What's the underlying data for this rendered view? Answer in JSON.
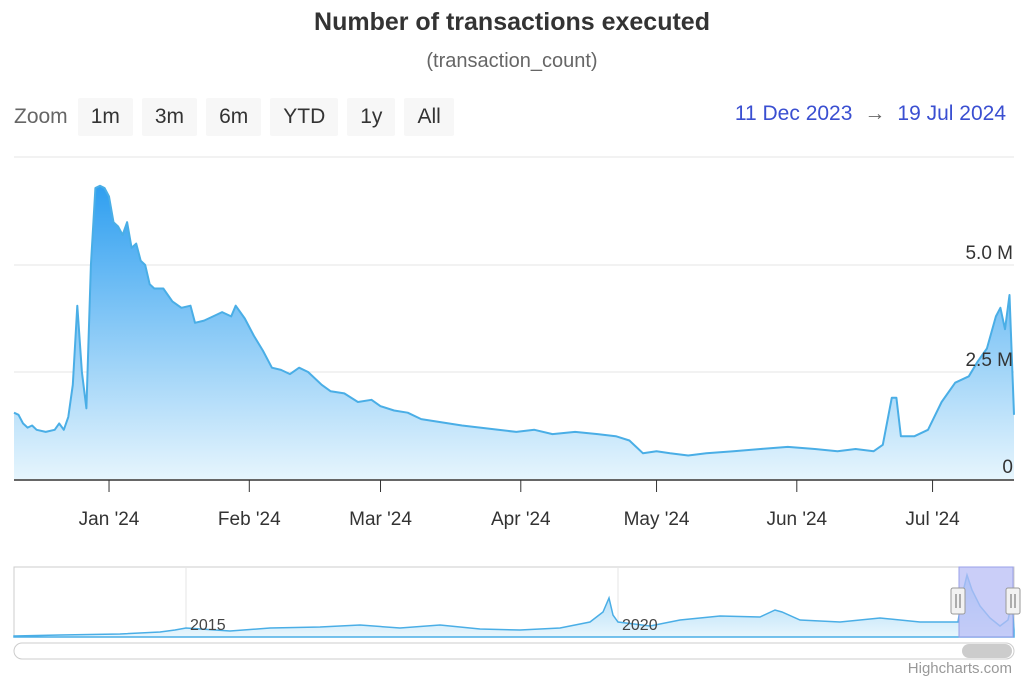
{
  "header": {
    "title": "Number of transactions executed",
    "subtitle": "(transaction_count)"
  },
  "zoom": {
    "label": "Zoom",
    "buttons": [
      "1m",
      "3m",
      "6m",
      "YTD",
      "1y",
      "All"
    ]
  },
  "range_selector": {
    "from": "11 Dec 2023",
    "arrow": "→",
    "to": "19 Jul 2024"
  },
  "credit": "Highcharts.com",
  "colors": {
    "line": "#4aaee6",
    "fill_top": "#2f9ff0",
    "fill_bottom": "#e6f5fd",
    "navigator_mask": "#b8bdf5",
    "range_text": "#3a4fd1"
  },
  "chart_data": {
    "type": "area",
    "title": "Number of transactions executed",
    "subtitle": "(transaction_count)",
    "x_start": "2023-12-11",
    "x_end": "2024-07-19",
    "ylim": [
      0,
      6500000
    ],
    "y_ticks": [
      {
        "value": 0,
        "label": "0"
      },
      {
        "value": 2500000,
        "label": "2.5 M"
      },
      {
        "value": 5000000,
        "label": "5.0 M"
      }
    ],
    "x_ticks": [
      {
        "date": "2024-01-01",
        "label": "Jan '24"
      },
      {
        "date": "2024-02-01",
        "label": "Feb '24"
      },
      {
        "date": "2024-03-01",
        "label": "Mar '24"
      },
      {
        "date": "2024-04-01",
        "label": "Apr '24"
      },
      {
        "date": "2024-05-01",
        "label": "May '24"
      },
      {
        "date": "2024-06-01",
        "label": "Jun '24"
      },
      {
        "date": "2024-07-01",
        "label": "Jul '24"
      }
    ],
    "grid": true,
    "series": [
      {
        "points": [
          [
            "2023-12-11",
            1550000
          ],
          [
            "2023-12-12",
            1500000
          ],
          [
            "2023-12-13",
            1300000
          ],
          [
            "2023-12-14",
            1200000
          ],
          [
            "2023-12-15",
            1250000
          ],
          [
            "2023-12-16",
            1150000
          ],
          [
            "2023-12-18",
            1100000
          ],
          [
            "2023-12-20",
            1150000
          ],
          [
            "2023-12-21",
            1300000
          ],
          [
            "2023-12-22",
            1150000
          ],
          [
            "2023-12-23",
            1450000
          ],
          [
            "2023-12-24",
            2200000
          ],
          [
            "2023-12-25",
            4050000
          ],
          [
            "2023-12-26",
            2500000
          ],
          [
            "2023-12-27",
            1650000
          ],
          [
            "2023-12-28",
            5000000
          ],
          [
            "2023-12-29",
            6800000
          ],
          [
            "2023-12-30",
            6850000
          ],
          [
            "2023-12-31",
            6800000
          ],
          [
            "2024-01-01",
            6600000
          ],
          [
            "2024-01-02",
            6000000
          ],
          [
            "2024-01-03",
            5900000
          ],
          [
            "2024-01-04",
            5700000
          ],
          [
            "2024-01-05",
            6000000
          ],
          [
            "2024-01-06",
            5400000
          ],
          [
            "2024-01-07",
            5500000
          ],
          [
            "2024-01-08",
            5100000
          ],
          [
            "2024-01-09",
            5000000
          ],
          [
            "2024-01-10",
            4550000
          ],
          [
            "2024-01-11",
            4450000
          ],
          [
            "2024-01-13",
            4450000
          ],
          [
            "2024-01-15",
            4150000
          ],
          [
            "2024-01-17",
            4000000
          ],
          [
            "2024-01-19",
            4050000
          ],
          [
            "2024-01-20",
            3650000
          ],
          [
            "2024-01-22",
            3700000
          ],
          [
            "2024-01-24",
            3800000
          ],
          [
            "2024-01-26",
            3900000
          ],
          [
            "2024-01-28",
            3800000
          ],
          [
            "2024-01-29",
            4050000
          ],
          [
            "2024-01-31",
            3750000
          ],
          [
            "2024-02-02",
            3350000
          ],
          [
            "2024-02-04",
            3000000
          ],
          [
            "2024-02-06",
            2600000
          ],
          [
            "2024-02-08",
            2550000
          ],
          [
            "2024-02-10",
            2450000
          ],
          [
            "2024-02-12",
            2600000
          ],
          [
            "2024-02-14",
            2500000
          ],
          [
            "2024-02-17",
            2200000
          ],
          [
            "2024-02-19",
            2050000
          ],
          [
            "2024-02-22",
            2000000
          ],
          [
            "2024-02-25",
            1800000
          ],
          [
            "2024-02-28",
            1850000
          ],
          [
            "2024-03-01",
            1700000
          ],
          [
            "2024-03-04",
            1600000
          ],
          [
            "2024-03-07",
            1550000
          ],
          [
            "2024-03-10",
            1400000
          ],
          [
            "2024-03-13",
            1350000
          ],
          [
            "2024-03-16",
            1300000
          ],
          [
            "2024-03-19",
            1250000
          ],
          [
            "2024-03-23",
            1200000
          ],
          [
            "2024-03-27",
            1150000
          ],
          [
            "2024-03-31",
            1100000
          ],
          [
            "2024-04-04",
            1150000
          ],
          [
            "2024-04-08",
            1050000
          ],
          [
            "2024-04-13",
            1100000
          ],
          [
            "2024-04-18",
            1050000
          ],
          [
            "2024-04-22",
            1000000
          ],
          [
            "2024-04-25",
            900000
          ],
          [
            "2024-04-28",
            600000
          ],
          [
            "2024-05-01",
            650000
          ],
          [
            "2024-05-04",
            600000
          ],
          [
            "2024-05-08",
            550000
          ],
          [
            "2024-05-12",
            600000
          ],
          [
            "2024-05-18",
            650000
          ],
          [
            "2024-05-24",
            700000
          ],
          [
            "2024-05-30",
            750000
          ],
          [
            "2024-06-05",
            700000
          ],
          [
            "2024-06-10",
            650000
          ],
          [
            "2024-06-14",
            700000
          ],
          [
            "2024-06-18",
            650000
          ],
          [
            "2024-06-20",
            800000
          ],
          [
            "2024-06-22",
            1900000
          ],
          [
            "2024-06-23",
            1900000
          ],
          [
            "2024-06-24",
            1000000
          ],
          [
            "2024-06-27",
            1000000
          ],
          [
            "2024-06-30",
            1150000
          ],
          [
            "2024-07-03",
            1800000
          ],
          [
            "2024-07-06",
            2250000
          ],
          [
            "2024-07-09",
            2400000
          ],
          [
            "2024-07-11",
            2750000
          ],
          [
            "2024-07-13",
            3050000
          ],
          [
            "2024-07-15",
            3800000
          ],
          [
            "2024-07-16",
            4000000
          ],
          [
            "2024-07-17",
            3500000
          ],
          [
            "2024-07-18",
            4300000
          ],
          [
            "2024-07-19",
            1500000
          ]
        ]
      }
    ],
    "navigator": {
      "labels": [
        "2015",
        "2020"
      ]
    }
  }
}
